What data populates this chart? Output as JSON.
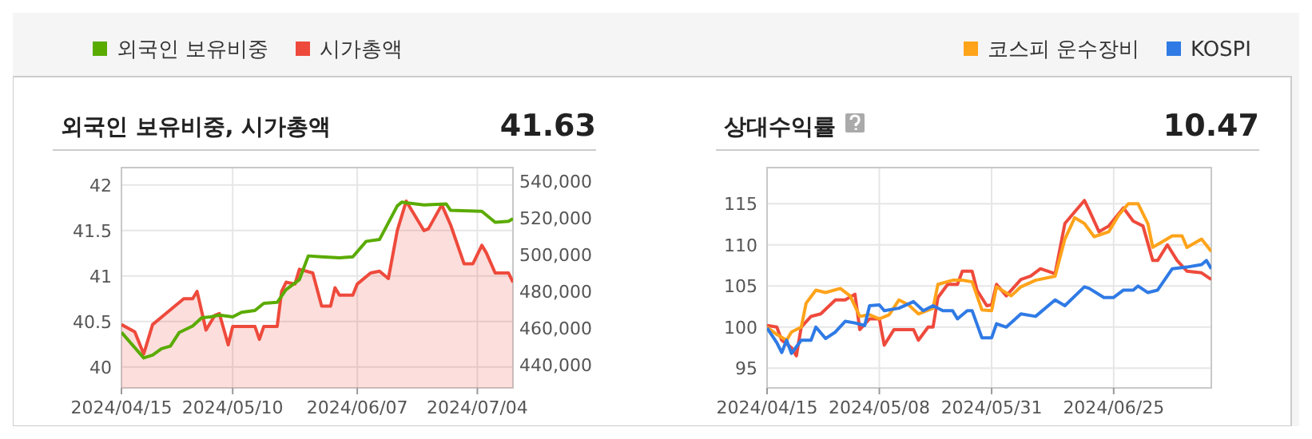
{
  "chart_data": [
    {
      "type": "line",
      "title": "외국인 보유비중, 시가총액",
      "annotations": [
        "41.63"
      ],
      "legend": "top left",
      "grid": true,
      "xlim": [
        "2024-04-15",
        "2024-07-12"
      ],
      "xticks": [
        {
          "value": "2024-04-15",
          "label": "2024/04/15"
        },
        {
          "value": "2024-05-10",
          "label": "2024/05/10"
        },
        {
          "value": "2024-06-07",
          "label": "2024/06/07"
        },
        {
          "value": "2024-07-04",
          "label": "2024/07/04"
        }
      ],
      "ylim": [
        39.77,
        42.19
      ],
      "yticks": [
        40,
        40.5,
        41,
        41.5,
        42
      ],
      "y2lim": [
        427600,
        547200
      ],
      "y2ticks": [
        {
          "value": 440000,
          "label": "440,000"
        },
        {
          "value": 460000,
          "label": "460,000"
        },
        {
          "value": 480000,
          "label": "480,000"
        },
        {
          "value": 500000,
          "label": "500,000"
        },
        {
          "value": 520000,
          "label": "520,000"
        },
        {
          "value": 540000,
          "label": "540,000"
        }
      ],
      "series": [
        {
          "name": "외국인 보유비중",
          "color": "#5aab00",
          "x": [
            "2024-04-15",
            "2024-04-20",
            "2024-04-22",
            "2024-04-24",
            "2024-04-26",
            "2024-04-28",
            "2024-05-01",
            "2024-05-03",
            "2024-05-05",
            "2024-05-07",
            "2024-05-10",
            "2024-05-12",
            "2024-05-15",
            "2024-05-17",
            "2024-05-20",
            "2024-05-22",
            "2024-05-25",
            "2024-05-27",
            "2024-05-30",
            "2024-06-03",
            "2024-06-06",
            "2024-06-09",
            "2024-06-12",
            "2024-06-16",
            "2024-06-17",
            "2024-06-22",
            "2024-06-27",
            "2024-06-28",
            "2024-07-05",
            "2024-07-08",
            "2024-07-11",
            "2024-07-12"
          ],
          "values": [
            40.38,
            40.1,
            40.13,
            40.2,
            40.23,
            40.38,
            40.45,
            40.54,
            40.55,
            40.57,
            40.55,
            40.6,
            40.62,
            40.7,
            40.71,
            40.85,
            40.96,
            41.22,
            41.21,
            41.2,
            41.21,
            41.38,
            41.4,
            41.77,
            41.81,
            41.78,
            41.79,
            41.72,
            41.71,
            41.59,
            41.6,
            41.63
          ]
        },
        {
          "name": "시가총액",
          "type": "area",
          "axis": "y2",
          "color": "#ee4a3c",
          "x": [
            "2024-04-15",
            "2024-04-18",
            "2024-04-20",
            "2024-04-22",
            "2024-04-25",
            "2024-04-29",
            "2024-05-01",
            "2024-05-02",
            "2024-05-04",
            "2024-05-06",
            "2024-05-07",
            "2024-05-09",
            "2024-05-10",
            "2024-05-13",
            "2024-05-15",
            "2024-05-16",
            "2024-05-17",
            "2024-05-20",
            "2024-05-21",
            "2024-05-22",
            "2024-05-24",
            "2024-05-25",
            "2024-05-28",
            "2024-05-30",
            "2024-06-01",
            "2024-06-02",
            "2024-06-03",
            "2024-06-06",
            "2024-06-07",
            "2024-06-10",
            "2024-06-12",
            "2024-06-14",
            "2024-06-16",
            "2024-06-18",
            "2024-06-22",
            "2024-06-23",
            "2024-06-26",
            "2024-06-28",
            "2024-07-01",
            "2024-07-03",
            "2024-07-05",
            "2024-07-06",
            "2024-07-08",
            "2024-07-11",
            "2024-07-12"
          ],
          "values": [
            462000,
            458000,
            446000,
            462000,
            468000,
            476000,
            476000,
            480000,
            459000,
            467000,
            468000,
            451000,
            461000,
            461000,
            461000,
            454000,
            461000,
            461000,
            480000,
            485000,
            484000,
            492000,
            490000,
            472000,
            472000,
            482000,
            478000,
            478000,
            484000,
            490000,
            491000,
            487000,
            513000,
            529000,
            513000,
            514000,
            527000,
            516000,
            495000,
            495000,
            505000,
            501000,
            490000,
            490000,
            485000
          ]
        }
      ]
    },
    {
      "type": "line",
      "title": "상대수익률",
      "annotations": [
        "10.47"
      ],
      "legend": "top right",
      "grid": true,
      "xlim": [
        "2024-04-15",
        "2024-07-15"
      ],
      "xticks": [
        {
          "value": "2024-04-15",
          "label": "2024/04/15"
        },
        {
          "value": "2024-05-08",
          "label": "2024/05/08"
        },
        {
          "value": "2024-05-31",
          "label": "2024/05/31"
        },
        {
          "value": "2024-06-25",
          "label": "2024/06/25"
        }
      ],
      "ylim": [
        92.6,
        119.4
      ],
      "yticks": [
        95,
        100,
        105,
        110,
        115
      ],
      "series": [
        {
          "color": "#ee4a3c",
          "x": [
            "2024-04-15",
            "2024-04-17",
            "2024-04-18",
            "2024-04-20",
            "2024-04-21",
            "2024-04-22",
            "2024-04-24",
            "2024-04-26",
            "2024-04-29",
            "2024-05-01",
            "2024-05-03",
            "2024-05-04",
            "2024-05-06",
            "2024-05-08",
            "2024-05-09",
            "2024-05-11",
            "2024-05-15",
            "2024-05-16",
            "2024-05-18",
            "2024-05-19",
            "2024-05-20",
            "2024-05-22",
            "2024-05-24",
            "2024-05-25",
            "2024-05-27",
            "2024-05-28",
            "2024-05-30",
            "2024-05-31",
            "2024-06-01",
            "2024-06-03",
            "2024-06-06",
            "2024-06-08",
            "2024-06-10",
            "2024-06-13",
            "2024-06-15",
            "2024-06-19",
            "2024-06-20",
            "2024-06-22",
            "2024-06-24",
            "2024-06-27",
            "2024-06-29",
            "2024-07-01",
            "2024-07-03",
            "2024-07-04",
            "2024-07-06",
            "2024-07-08",
            "2024-07-10",
            "2024-07-13",
            "2024-07-15"
          ],
          "values": [
            100.2,
            100,
            98.4,
            97.5,
            96.5,
            100,
            101.3,
            101.6,
            103.3,
            103.3,
            104,
            99.7,
            101,
            101,
            97.8,
            99.7,
            99.7,
            98.4,
            100,
            100,
            103.6,
            105.2,
            105.2,
            106.8,
            106.8,
            104.5,
            102.6,
            102.7,
            105.2,
            103.8,
            105.8,
            106.2,
            107.1,
            106.5,
            112.6,
            115.4,
            114.2,
            111.6,
            112.3,
            114.5,
            112.9,
            112.3,
            108.1,
            108.1,
            110,
            108.1,
            106.8,
            106.6,
            105.8
          ]
        },
        {
          "name": "코스피 운수장비",
          "color": "#ffa31a",
          "x": [
            "2024-04-15",
            "2024-04-17",
            "2024-04-19",
            "2024-04-20",
            "2024-04-22",
            "2024-04-23",
            "2024-04-25",
            "2024-04-27",
            "2024-04-30",
            "2024-05-02",
            "2024-05-04",
            "2024-05-06",
            "2024-05-08",
            "2024-05-10",
            "2024-05-12",
            "2024-05-14",
            "2024-05-16",
            "2024-05-19",
            "2024-05-20",
            "2024-05-23",
            "2024-05-25",
            "2024-05-27",
            "2024-05-29",
            "2024-05-31",
            "2024-06-01",
            "2024-06-04",
            "2024-06-06",
            "2024-06-09",
            "2024-06-13",
            "2024-06-15",
            "2024-06-17",
            "2024-06-19",
            "2024-06-21",
            "2024-06-24",
            "2024-06-26",
            "2024-06-28",
            "2024-06-30",
            "2024-07-02",
            "2024-07-03",
            "2024-07-05",
            "2024-07-07",
            "2024-07-09",
            "2024-07-10",
            "2024-07-13",
            "2024-07-15"
          ],
          "values": [
            100,
            99.1,
            98.4,
            99.4,
            100,
            102.9,
            104.5,
            104.2,
            104.7,
            103.8,
            101.3,
            101.5,
            101,
            101.5,
            103.3,
            102.7,
            101.6,
            102.3,
            105.2,
            105.7,
            105.7,
            105.5,
            102.1,
            102,
            104.9,
            103.8,
            104.9,
            105.7,
            106.2,
            110.7,
            113.3,
            112.6,
            111,
            111.6,
            113.6,
            115,
            115,
            112.6,
            109.7,
            110.4,
            111.1,
            111.1,
            109.7,
            110.7,
            109.2
          ]
        },
        {
          "name": "KOSPI",
          "color": "#2f7ae5",
          "x": [
            "2024-04-15",
            "2024-04-17",
            "2024-04-18",
            "2024-04-19",
            "2024-04-20",
            "2024-04-22",
            "2024-04-24",
            "2024-04-25",
            "2024-04-27",
            "2024-04-29",
            "2024-05-01",
            "2024-05-03",
            "2024-05-05",
            "2024-05-06",
            "2024-05-08",
            "2024-05-09",
            "2024-05-12",
            "2024-05-15",
            "2024-05-17",
            "2024-05-19",
            "2024-05-21",
            "2024-05-23",
            "2024-05-24",
            "2024-05-26",
            "2024-05-27",
            "2024-05-29",
            "2024-05-31",
            "2024-06-01",
            "2024-06-03",
            "2024-06-06",
            "2024-06-09",
            "2024-06-13",
            "2024-06-15",
            "2024-06-19",
            "2024-06-20",
            "2024-06-23",
            "2024-06-25",
            "2024-06-27",
            "2024-06-29",
            "2024-06-30",
            "2024-07-02",
            "2024-07-04",
            "2024-07-07",
            "2024-07-10",
            "2024-07-13",
            "2024-07-14",
            "2024-07-15"
          ],
          "values": [
            99.9,
            98.1,
            96.9,
            98.4,
            96.8,
            98.4,
            98.4,
            100,
            98.6,
            99.4,
            100.7,
            100.5,
            100.2,
            102.6,
            102.7,
            102,
            102.3,
            103.1,
            102,
            102.6,
            102,
            102,
            101,
            102,
            102,
            98.7,
            98.7,
            100.4,
            100,
            101.6,
            101.3,
            103.3,
            102.6,
            104.9,
            104.7,
            103.6,
            103.6,
            104.5,
            104.5,
            105,
            104.2,
            104.5,
            107.1,
            107.3,
            107.6,
            108.1,
            107.1
          ]
        }
      ]
    }
  ]
}
